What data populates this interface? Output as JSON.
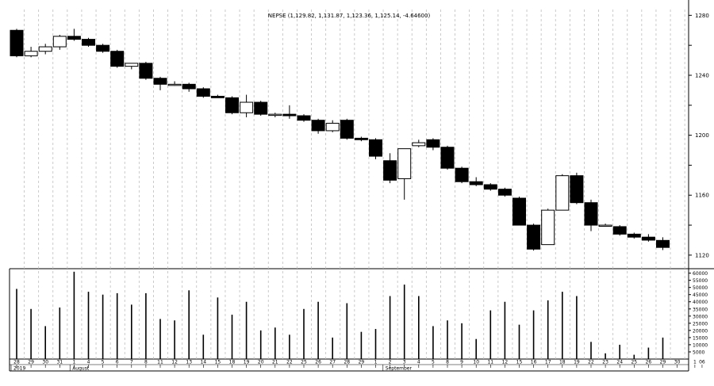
{
  "chart_data": {
    "type": "candlestick",
    "title": "NEPSE (1,129.82, 1,131.87, 1,123.36, 1,125.14, -4.64600)",
    "price_ylim": [
      1112,
      1286
    ],
    "price_ticks": [
      1120,
      1140,
      1160,
      1180,
      1200,
      1220,
      1240,
      1260,
      1280
    ],
    "price_tick_labels": [
      "1120",
      "1160",
      "1200",
      "1240",
      "1280"
    ],
    "volume_ylim": [
      0,
      62000
    ],
    "volume_ticks": [
      5000,
      10000,
      15000,
      20000,
      25000,
      30000,
      35000,
      40000,
      45000,
      50000,
      55000,
      60000
    ],
    "volume_tick_labels": [
      "5000",
      "10000",
      "15000",
      "20000",
      "25000",
      "30000",
      "35000",
      "40000",
      "45000",
      "50000",
      "55000",
      "60000"
    ],
    "x_day_labels": [
      "28",
      "29",
      "30",
      "31",
      "1",
      "4",
      "5",
      "6",
      "7",
      "8",
      "11",
      "12",
      "13",
      "14",
      "15",
      "18",
      "19",
      "20",
      "21",
      "22",
      "25",
      "26",
      "27",
      "28",
      "29",
      "1",
      "2",
      "3",
      "4",
      "5",
      "8",
      "9",
      "10",
      "11",
      "12",
      "15",
      "16",
      "17",
      "18",
      "19",
      "22",
      "23",
      "24",
      "25",
      "26",
      "29",
      "30",
      "1",
      "06"
    ],
    "x_label_positions": [
      0,
      1,
      2,
      3,
      4,
      5,
      6,
      7,
      8,
      9,
      10,
      11,
      12,
      13,
      14,
      15,
      16,
      17,
      18,
      19,
      20,
      21,
      22,
      23,
      24,
      25,
      26,
      27,
      28,
      29,
      30,
      31,
      32,
      33,
      34,
      35,
      36,
      37,
      38,
      39,
      40,
      41,
      42,
      43,
      44,
      45,
      46,
      46.9,
      47.4
    ],
    "x_period_labels": [
      {
        "label": "2019",
        "pos": 0
      },
      {
        "label": "August",
        "pos": 4.1
      },
      {
        "label": "September",
        "pos": 25.9
      }
    ],
    "grid": "vertical-dashed",
    "candles": [
      {
        "o": 1270,
        "h": 1271,
        "l": 1252,
        "c": 1253
      },
      {
        "o": 1253,
        "h": 1259,
        "l": 1252,
        "c": 1256
      },
      {
        "o": 1256,
        "h": 1261,
        "l": 1254,
        "c": 1259
      },
      {
        "o": 1259,
        "h": 1267,
        "l": 1257,
        "c": 1266
      },
      {
        "o": 1266,
        "h": 1271,
        "l": 1263,
        "c": 1264
      },
      {
        "o": 1264,
        "h": 1265,
        "l": 1259,
        "c": 1260
      },
      {
        "o": 1260,
        "h": 1261,
        "l": 1255,
        "c": 1256
      },
      {
        "o": 1256,
        "h": 1257,
        "l": 1245,
        "c": 1246
      },
      {
        "o": 1246,
        "h": 1248,
        "l": 1244,
        "c": 1248
      },
      {
        "o": 1248,
        "h": 1249,
        "l": 1237,
        "c": 1238
      },
      {
        "o": 1238,
        "h": 1239,
        "l": 1230,
        "c": 1234
      },
      {
        "o": 1234,
        "h": 1236,
        "l": 1233,
        "c": 1234
      },
      {
        "o": 1234,
        "h": 1235,
        "l": 1229,
        "c": 1231
      },
      {
        "o": 1231,
        "h": 1232,
        "l": 1225,
        "c": 1226
      },
      {
        "o": 1226,
        "h": 1227,
        "l": 1225,
        "c": 1225
      },
      {
        "o": 1225,
        "h": 1226,
        "l": 1214,
        "c": 1215
      },
      {
        "o": 1215,
        "h": 1227,
        "l": 1212,
        "c": 1222
      },
      {
        "o": 1222,
        "h": 1223,
        "l": 1213,
        "c": 1214
      },
      {
        "o": 1214,
        "h": 1215,
        "l": 1212,
        "c": 1214
      },
      {
        "o": 1214,
        "h": 1220,
        "l": 1211,
        "c": 1213
      },
      {
        "o": 1213,
        "h": 1214,
        "l": 1209,
        "c": 1210
      },
      {
        "o": 1210,
        "h": 1211,
        "l": 1201,
        "c": 1203
      },
      {
        "o": 1203,
        "h": 1210,
        "l": 1202,
        "c": 1208
      },
      {
        "o": 1210,
        "h": 1211,
        "l": 1197,
        "c": 1198
      },
      {
        "o": 1198,
        "h": 1199,
        "l": 1196,
        "c": 1197
      },
      {
        "o": 1197,
        "h": 1198,
        "l": 1184,
        "c": 1186
      },
      {
        "o": 1183,
        "h": 1188,
        "l": 1168,
        "c": 1170
      },
      {
        "o": 1171,
        "h": 1191,
        "l": 1157,
        "c": 1191
      },
      {
        "o": 1193,
        "h": 1197,
        "l": 1192,
        "c": 1195
      },
      {
        "o": 1197,
        "h": 1198,
        "l": 1190,
        "c": 1192
      },
      {
        "o": 1192,
        "h": 1193,
        "l": 1177,
        "c": 1178
      },
      {
        "o": 1178,
        "h": 1179,
        "l": 1168,
        "c": 1169
      },
      {
        "o": 1169,
        "h": 1172,
        "l": 1166,
        "c": 1167
      },
      {
        "o": 1167,
        "h": 1168,
        "l": 1163,
        "c": 1164
      },
      {
        "o": 1164,
        "h": 1165,
        "l": 1159,
        "c": 1160
      },
      {
        "o": 1158,
        "h": 1159,
        "l": 1140,
        "c": 1140
      },
      {
        "o": 1140,
        "h": 1141,
        "l": 1123,
        "c": 1124
      },
      {
        "o": 1127,
        "h": 1151,
        "l": 1127,
        "c": 1150
      },
      {
        "o": 1150,
        "h": 1174,
        "l": 1150,
        "c": 1173
      },
      {
        "o": 1173,
        "h": 1175,
        "l": 1154,
        "c": 1155
      },
      {
        "o": 1155,
        "h": 1157,
        "l": 1136,
        "c": 1140
      },
      {
        "o": 1140,
        "h": 1141,
        "l": 1139,
        "c": 1140
      },
      {
        "o": 1139,
        "h": 1140,
        "l": 1133,
        "c": 1134
      },
      {
        "o": 1134,
        "h": 1135,
        "l": 1131,
        "c": 1132
      },
      {
        "o": 1132,
        "h": 1134,
        "l": 1129,
        "c": 1130
      },
      {
        "o": 1129.82,
        "h": 1131.87,
        "l": 1123.36,
        "c": 1125.14
      }
    ],
    "volumes": [
      49000,
      35000,
      23000,
      36000,
      61000,
      47000,
      45000,
      46000,
      38000,
      46000,
      28000,
      27000,
      48000,
      17000,
      43000,
      31000,
      40000,
      20000,
      22000,
      17000,
      35000,
      40000,
      15000,
      39000,
      19000,
      21000,
      44000,
      52000,
      44000,
      23000,
      27000,
      25000,
      14000,
      34000,
      40000,
      24000,
      34000,
      41000,
      47000,
      44000,
      12000,
      4000,
      10000,
      3000,
      8000,
      15000
    ]
  }
}
